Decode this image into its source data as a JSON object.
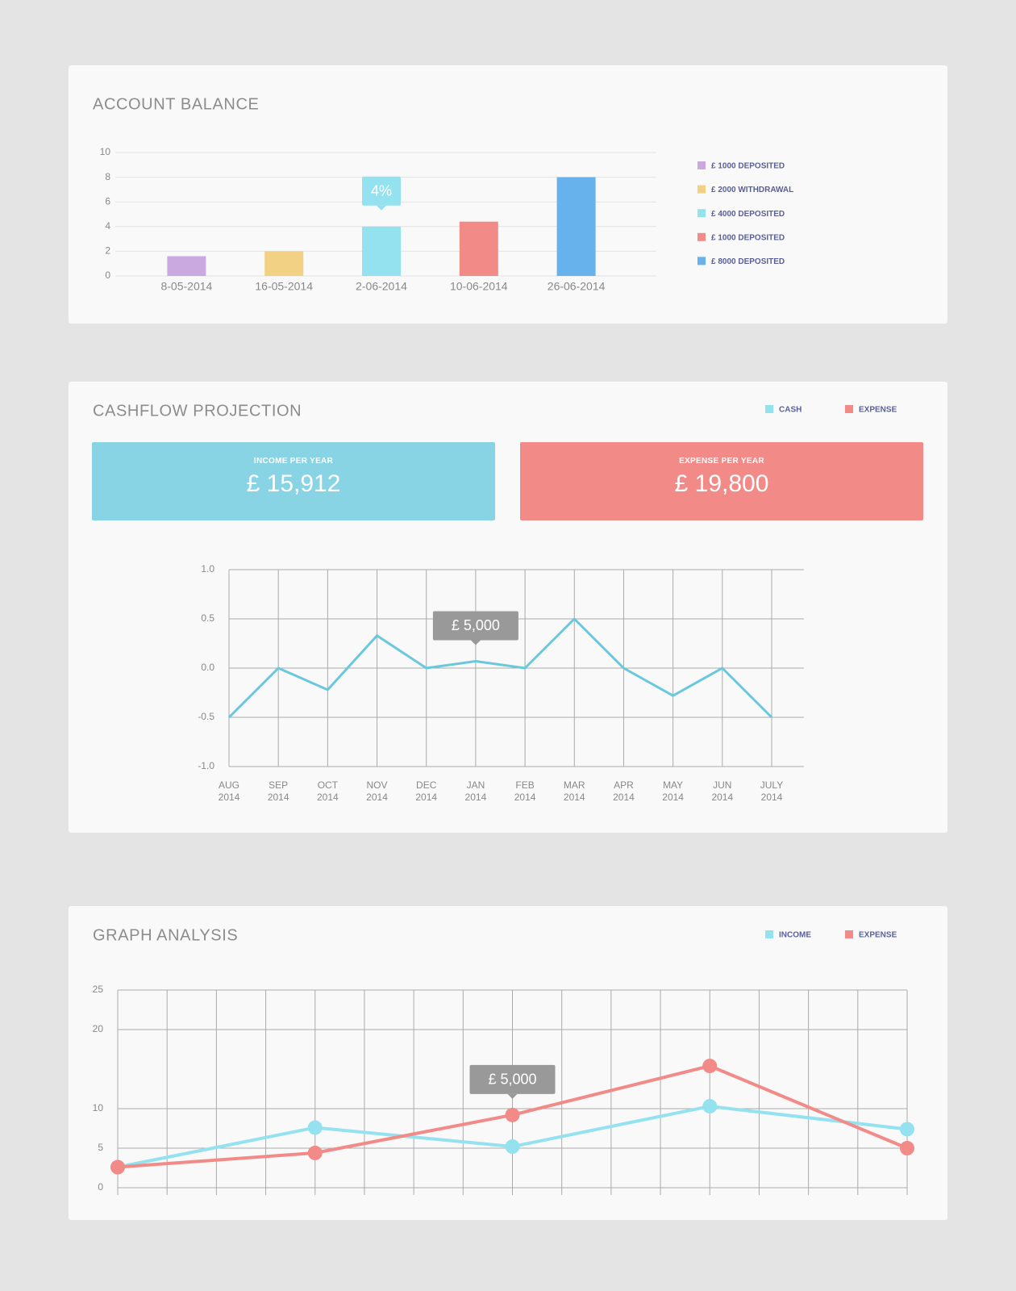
{
  "chart_data": [
    {
      "type": "bar",
      "title": "ACCOUNT BALANCE",
      "categories": [
        "8-05-2014",
        "16-05-2014",
        "2-06-2014",
        "10-06-2014",
        "26-06-2014"
      ],
      "values": [
        1.6,
        2,
        4,
        4.4,
        8
      ],
      "colors": [
        "#c9a9e0",
        "#f2d184",
        "#94e1f0",
        "#f28b88",
        "#67b1ec"
      ],
      "ylim": [
        0,
        10
      ],
      "yticks": [
        0,
        2,
        4,
        6,
        8,
        10
      ],
      "grid": true,
      "annotation": "4%",
      "legend": [
        {
          "label": "£ 1000 DEPOSITED",
          "color": "#c9a9e0"
        },
        {
          "label": "£ 2000 WITHDRAWAL",
          "color": "#f2d184"
        },
        {
          "label": "£ 4000 DEPOSITED",
          "color": "#94e1f0"
        },
        {
          "label": "£ 1000 DEPOSITED",
          "color": "#f28b88"
        },
        {
          "label": "£ 8000 DEPOSITED",
          "color": "#67b1ec"
        }
      ]
    },
    {
      "type": "line",
      "title": "CASHFLOW PROJECTION",
      "legend": [
        {
          "label": "CASH",
          "color": "#94e1f0"
        },
        {
          "label": "EXPENSE",
          "color": "#f28b88"
        }
      ],
      "cards": [
        {
          "label": "INCOME PER YEAR",
          "value": "£ 15,912",
          "color": "#89d4e4"
        },
        {
          "label": "EXPENSE PER YEAR",
          "value": "£ 19,800",
          "color": "#f28b88"
        }
      ],
      "categories": [
        "AUG 2014",
        "SEP 2014",
        "OCT 2014",
        "NOV 2014",
        "DEC 2014",
        "JAN 2014",
        "FEB 2014",
        "MAR 2014",
        "APR 2014",
        "MAY 2014",
        "JUN 2014",
        "JULY 2014"
      ],
      "series": [
        {
          "name": "CASH",
          "color": "#6ac8dd",
          "values": [
            -0.5,
            0,
            -0.22,
            0.33,
            0,
            0.07,
            0,
            0.5,
            0,
            -0.28,
            0,
            -0.5
          ]
        }
      ],
      "ylim": [
        -1,
        1
      ],
      "yticks": [
        {
          "value": -1,
          "label": "-1.0"
        },
        {
          "value": -0.5,
          "label": "-0.5"
        },
        {
          "value": 0,
          "label": "0.0"
        },
        {
          "value": 0.5,
          "label": "0.5"
        },
        {
          "value": 1,
          "label": "1.0"
        }
      ],
      "grid": true,
      "annotation": "£ 5,000"
    },
    {
      "type": "line",
      "title": "GRAPH ANALYSIS",
      "x": [
        0,
        4,
        8,
        12,
        16
      ],
      "xlim": [
        0,
        16
      ],
      "xticks": [
        0,
        1,
        2,
        3,
        4,
        5,
        6,
        7,
        8,
        9,
        10,
        11,
        12,
        13,
        14,
        15,
        16
      ],
      "xtick_labels": false,
      "series": [
        {
          "name": "INCOME",
          "color": "#94e1f0",
          "values": [
            2.6,
            7.6,
            5.2,
            10.3,
            7.4
          ]
        },
        {
          "name": "EXPENSE",
          "color": "#f28b88",
          "values": [
            2.6,
            4.4,
            9.2,
            15.4,
            5
          ]
        }
      ],
      "ylim": [
        0,
        25
      ],
      "yticks": [
        0,
        5,
        10,
        20,
        25
      ],
      "grid": true,
      "markers": true,
      "annotation": "£ 5,000"
    }
  ]
}
